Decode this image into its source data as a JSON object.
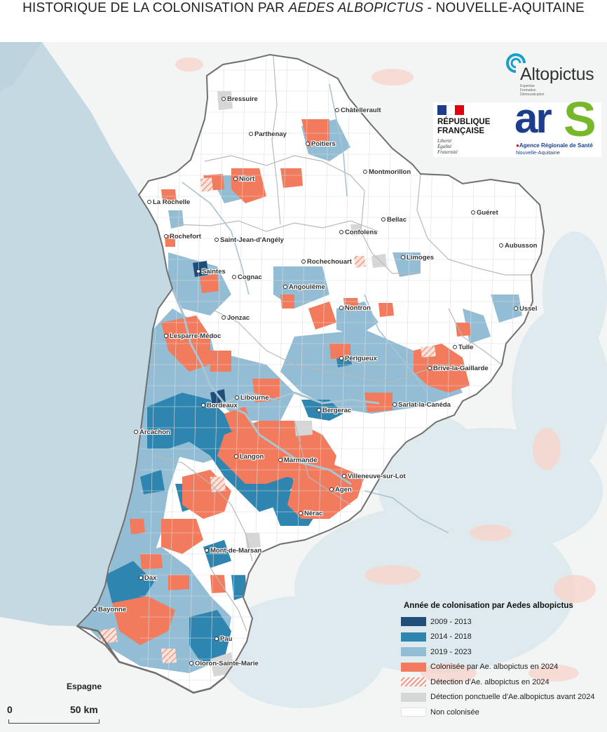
{
  "title_prefix": "HISTORIQUE DE LA COLONISATION PAR ",
  "title_species": "AEDES ALBOPICTUS",
  "title_suffix": " - NOUVELLE-AQUITAINE",
  "logos": {
    "altopictus_name": "Altopictus",
    "altopictus_tagline": [
      "Expertise",
      "Formation",
      "Démoustication"
    ],
    "republique_line1": "RÉPUBLIQUE",
    "republique_line2": "FRANÇAISE",
    "motto": [
      "Liberté",
      "Égalité",
      "Fraternité"
    ],
    "ars_word": "ar",
    "ars_s": "S",
    "ars_agency": "Agence Régionale de Santé",
    "ars_region": "Nouvelle-Aquitaine"
  },
  "colors": {
    "sea": "#c5d9e2",
    "land_outside": "#f3f4f4",
    "region_base": "#ffffff",
    "c2009_2013": "#1f4e79",
    "c2014_2018": "#2e86b0",
    "c2019_2023": "#93bdd4",
    "c2024": "#f27b5e",
    "detection_2024": "#f0a38f",
    "detection_before_2024": "#d6d6d6",
    "non_colonisee": "#ffffff",
    "rivers": "#a9c4d2"
  },
  "legend": {
    "title": "Année de colonisation par Aedes albopictus",
    "items": [
      {
        "label": "2009 - 2013",
        "color": "#1f4e79",
        "pattern": "solid"
      },
      {
        "label": "2014 - 2018",
        "color": "#2e86b0",
        "pattern": "solid"
      },
      {
        "label": "2019 - 2023",
        "color": "#93bdd4",
        "pattern": "solid"
      },
      {
        "label": "Colonisée par Ae. albopictus en 2024",
        "color": "#f27b5e",
        "pattern": "solid"
      },
      {
        "label": "Détection d'Ae. albopictus en 2024",
        "color": "#f0a38f",
        "pattern": "hatch"
      },
      {
        "label": "Détection ponctuelle d'Ae.albopictus avant 2024",
        "color": "#d6d6d6",
        "pattern": "solid"
      },
      {
        "label": "Non colonisée",
        "color": "#ffffff",
        "pattern": "solid"
      }
    ]
  },
  "cities": [
    {
      "name": "Bressuire"
    },
    {
      "name": "Châtellerault"
    },
    {
      "name": "Parthenay"
    },
    {
      "name": "Poitiers"
    },
    {
      "name": "Niort"
    },
    {
      "name": "Montmorillon"
    },
    {
      "name": "La Rochelle"
    },
    {
      "name": "Guéret"
    },
    {
      "name": "Bellac"
    },
    {
      "name": "Rochefort"
    },
    {
      "name": "Saint-Jean-d'Angély"
    },
    {
      "name": "Confolens"
    },
    {
      "name": "Aubusson"
    },
    {
      "name": "Limoges"
    },
    {
      "name": "Rochechouart"
    },
    {
      "name": "Saintes"
    },
    {
      "name": "Cognac"
    },
    {
      "name": "Angoulême"
    },
    {
      "name": "Ussel"
    },
    {
      "name": "Nontron"
    },
    {
      "name": "Jonzac"
    },
    {
      "name": "Lesparre-Médoc"
    },
    {
      "name": "Tulle"
    },
    {
      "name": "Périgueux"
    },
    {
      "name": "Brive-la-Gaillarde"
    },
    {
      "name": "Libourne"
    },
    {
      "name": "Bordeaux"
    },
    {
      "name": "Sarlat-la-Canéda"
    },
    {
      "name": "Bergerac"
    },
    {
      "name": "Arcachon"
    },
    {
      "name": "Langon"
    },
    {
      "name": "Marmande"
    },
    {
      "name": "Villeneuve-sur-Lot"
    },
    {
      "name": "Agen"
    },
    {
      "name": "Nérac"
    },
    {
      "name": "Mont-de-Marsan"
    },
    {
      "name": "Dax"
    },
    {
      "name": "Bayonne"
    },
    {
      "name": "Pau"
    },
    {
      "name": "Oloron-Sainte-Marie"
    }
  ],
  "country_label": "Espagne",
  "scale": {
    "start": "0",
    "end": "50 km"
  }
}
